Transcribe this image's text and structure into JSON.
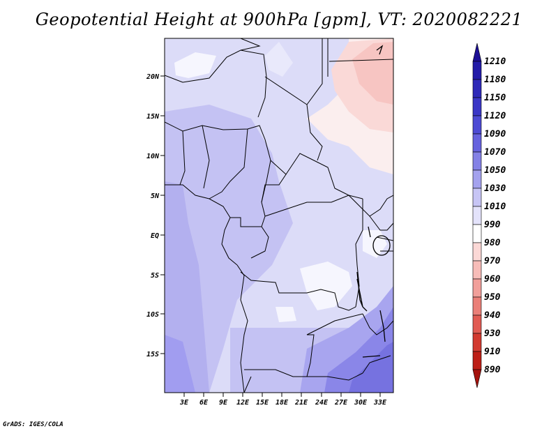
{
  "title": "Geopotential Height at 900hPa [gpm], VT: 2020082221",
  "credit": "GrADS: IGES/COLA",
  "map": {
    "lat_ticks": [
      "20N",
      "15N",
      "10N",
      "5N",
      "EQ",
      "5S",
      "10S",
      "15S"
    ],
    "lon_ticks": [
      "3E",
      "6E",
      "9E",
      "12E",
      "15E",
      "18E",
      "21E",
      "24E",
      "27E",
      "30E",
      "33E"
    ],
    "dominant_field_color": "#c9c6f5"
  },
  "colorbar": {
    "levels": [
      "1210",
      "1180",
      "1150",
      "1120",
      "1090",
      "1070",
      "1050",
      "1030",
      "1010",
      "990",
      "980",
      "970",
      "960",
      "950",
      "940",
      "930",
      "910",
      "890"
    ],
    "colors": [
      "#1c0f96",
      "#231ba8",
      "#2e29b8",
      "#3a36c6",
      "#4d4ad4",
      "#6662de",
      "#8481e6",
      "#a4a2ee",
      "#c7c5f5",
      "#e4e3fb",
      "#ffffff",
      "#fbd8d6",
      "#f7bcb8",
      "#f19f9a",
      "#ea7f78",
      "#e15b53",
      "#d23a30",
      "#bd1f17",
      "#a5130e"
    ]
  }
}
